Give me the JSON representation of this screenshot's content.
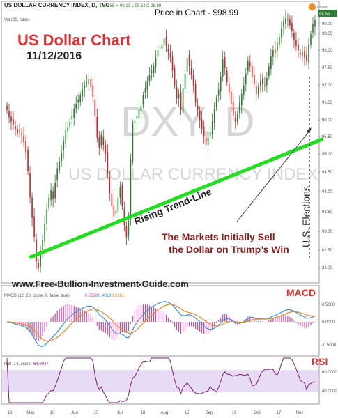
{
  "header": {
    "symbol_line": "US DOLLAR CURRENCY INDEX, D, TVC",
    "ohlc_line": "O 98.85 H 99.13 L 98.54 C 98.99",
    "vol_line": "Vol (20, false)",
    "price_caption": "Price in Chart - $98.99",
    "price_badge": "98.99"
  },
  "title": {
    "main": "US Dollar Chart",
    "date": "11/12/2016"
  },
  "watermark": {
    "symbol": "DXY, D",
    "name": "US DOLLAR CURRENCY INDEX"
  },
  "annotations": {
    "trend": "Rising Trend-Line",
    "sell_line1": "The Markets Initially Sell",
    "sell_line2": "the Dollar on Trump’s Win",
    "elections": "U.S. Elections",
    "website": "www.Free-Bullion-Investment-Guide.com",
    "macd_label": "MACD",
    "rsi_label": "RSI"
  },
  "indicators": {
    "macd_header": "MACD (12, 26, close, 9, false, true)",
    "macd_values": [
      "0.0338",
      "0.4019",
      "0.3681"
    ],
    "rsi_header": "RSI (14, close)",
    "rsi_value": "64.9047"
  },
  "colors": {
    "up": "#2e7d32",
    "down": "#c62828",
    "trend": "#22dd22",
    "title_red": "#e03030",
    "macd_blue": "#3a8fd8",
    "signal_orange": "#e8882a",
    "hist_pink": "#d04aa0",
    "rsi_purple": "#7a1f73",
    "rsi_band": "#e7dcf3"
  },
  "chart_data": {
    "type": "candlestick",
    "price_axis": {
      "range": [
        81.9,
        99.3
      ],
      "ticks": [
        "99.00",
        "98.50",
        "98.00",
        "97.50",
        "97.00",
        "96.50",
        "96.00",
        "95.50",
        "95.00",
        "94.50",
        "94.00",
        "93.50",
        "93.00",
        "82.50",
        "82.00"
      ]
    },
    "x_axis_ticks": [
      "18",
      "May",
      "16",
      "Jun",
      "15",
      "Jul",
      "18",
      "Aug",
      "15",
      "Sep",
      "19",
      "Oct",
      "17",
      "Nov"
    ],
    "macd_axis_ticks": [
      "0.5000",
      "0.0000",
      "-0.5000"
    ],
    "rsi_axis_ticks": [
      "60.0000",
      "40.0000"
    ],
    "closes": [
      92.8,
      92.3,
      92.0,
      91.8,
      91.5,
      91.2,
      91.4,
      91.1,
      90.6,
      89.9,
      88.6,
      86.8,
      85.4,
      84.1,
      82.4,
      82.0,
      83.0,
      83.9,
      85.0,
      86.0,
      86.8,
      87.3,
      86.7,
      87.8,
      88.8,
      89.3,
      89.9,
      90.7,
      91.4,
      91.6,
      92.0,
      92.4,
      92.9,
      93.2,
      93.5,
      93.8,
      94.2,
      94.5,
      94.7,
      94.9,
      94.4,
      93.7,
      92.4,
      90.9,
      90.2,
      91.1,
      90.4,
      89.8,
      88.4,
      87.1,
      86.2,
      85.5,
      85.9,
      86.8,
      87.5,
      86.2,
      84.9,
      84.1,
      85.2,
      89.4,
      91.9,
      92.1,
      92.4,
      92.8,
      93.1,
      93.8,
      94.3,
      94.8,
      95.2,
      95.5,
      95.8,
      96.4,
      96.9,
      97.1,
      97.3,
      97.7,
      97.2,
      96.8,
      96.4,
      95.5,
      94.5,
      93.6,
      93.9,
      92.8,
      94.3,
      95.3,
      96.4,
      95.8,
      95.2,
      94.5,
      93.3,
      92.8,
      92.1,
      91.5,
      91.0,
      90.4,
      90.9,
      91.3,
      92.0,
      92.9,
      93.6,
      94.2,
      95.1,
      96.3,
      95.7,
      94.7,
      94.0,
      93.2,
      92.4,
      92.0,
      92.5,
      93.3,
      93.9,
      94.5,
      95.3,
      96.2,
      95.8,
      95.1,
      94.6,
      93.9,
      94.4,
      94.8,
      94.6,
      94.5,
      95.0,
      95.8,
      96.5,
      96.9,
      96.7,
      97.4,
      97.8,
      98.4,
      98.9,
      99.1,
      99.0,
      98.6,
      98.2,
      97.6,
      97.2,
      96.9,
      96.6,
      96.8,
      96.4,
      96.2,
      97.3,
      98.0,
      98.7,
      98.99
    ],
    "trend_line": {
      "from": {
        "date": "early May",
        "price": 82.6
      },
      "to": {
        "date": "Nov 18",
        "price": 95.5
      }
    },
    "election_marker": "Nov 8"
  }
}
